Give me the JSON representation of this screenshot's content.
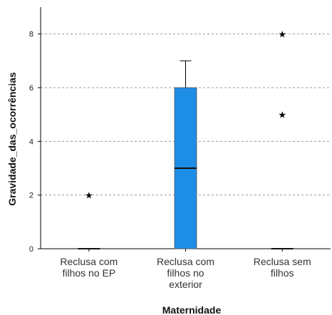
{
  "chart_data": {
    "type": "boxplot",
    "xlabel": "Maternidade",
    "ylabel": "Gravidade_das_ocorrências",
    "ylim": [
      0,
      9
    ],
    "yticks": [
      "0",
      "2",
      "4",
      "6",
      "8"
    ],
    "grid": "horizontal dashed",
    "box_color": "#1e8de6",
    "categories": [
      {
        "lines": [
          "Reclusa com",
          "filhos no EP"
        ],
        "min": 0,
        "q1": 0,
        "median": 0,
        "q3": 0,
        "max": 0,
        "outliers": [
          2
        ]
      },
      {
        "lines": [
          "Reclusa com",
          "filhos no",
          "exterior"
        ],
        "min": 0,
        "q1": 0,
        "median": 3,
        "q3": 6,
        "max": 7,
        "outliers": []
      },
      {
        "lines": [
          "Reclusa sem",
          "filhos"
        ],
        "min": 0,
        "q1": 0,
        "median": 0,
        "q3": 0,
        "max": 0,
        "outliers": [
          5,
          8
        ]
      }
    ]
  }
}
